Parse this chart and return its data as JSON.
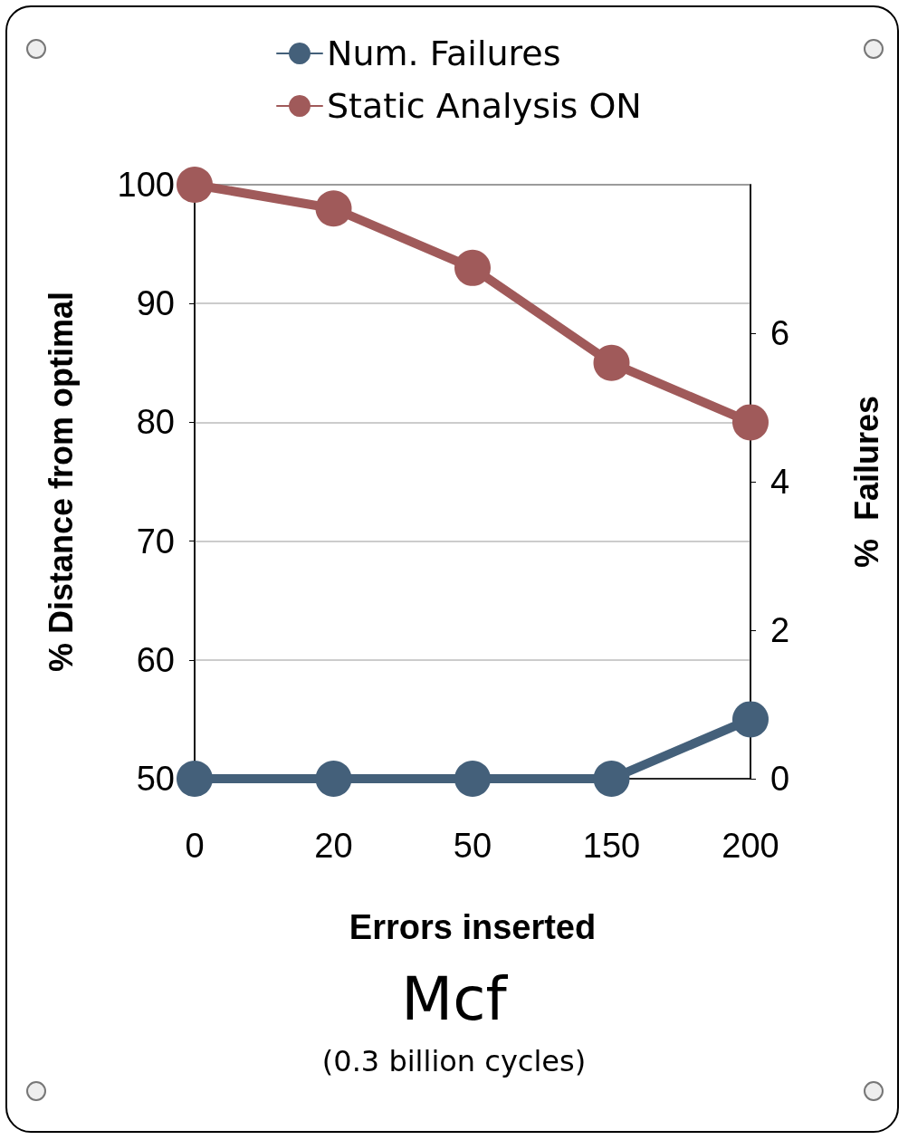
{
  "chart_data": {
    "type": "line",
    "title": "Mcf",
    "subtitle": "(0.3 billion cycles)",
    "xlabel": "Errors inserted",
    "ylabel": "% Distance from optimal",
    "y2label": "%  Failures",
    "categories": [
      "0",
      "20",
      "50",
      "150",
      "200"
    ],
    "series": [
      {
        "name": "Num. Failures",
        "color": "#44607a",
        "values": [
          0,
          0,
          0,
          0,
          0.8
        ],
        "axis": "y2"
      },
      {
        "name": "Static Analysis ON",
        "color": "#a05a5a",
        "values": [
          100,
          98,
          93,
          85,
          80
        ]
      }
    ],
    "ylim": [
      50,
      100
    ],
    "yticks": [
      50,
      60,
      70,
      80,
      90,
      100
    ],
    "y2lim": [
      0,
      8
    ],
    "y2ticks": [
      0,
      2,
      4,
      6
    ],
    "grid": "y",
    "legend": "top",
    "marker": "circle",
    "line_style": "solid"
  }
}
